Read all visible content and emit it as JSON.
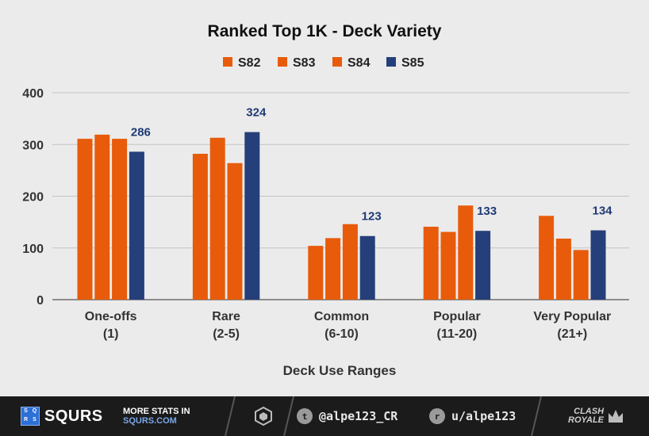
{
  "chart_data": {
    "type": "bar",
    "title": "Ranked Top 1K - Deck Variety",
    "xlabel": "Deck Use Ranges",
    "ylabel": "",
    "ylim": [
      0,
      400
    ],
    "yticks": [
      0,
      100,
      200,
      300,
      400
    ],
    "grid": true,
    "legend_position": "top-center",
    "categories": [
      [
        "One-offs",
        "(1)"
      ],
      [
        "Rare",
        "(2-5)"
      ],
      [
        "Common",
        "(6-10)"
      ],
      [
        "Popular",
        "(11-20)"
      ],
      [
        "Very Popular",
        "(21+)"
      ]
    ],
    "series": [
      {
        "name": "S82",
        "color": "#e85b0b",
        "values": [
          311,
          282,
          104,
          141,
          162
        ]
      },
      {
        "name": "S83",
        "color": "#e85b0b",
        "values": [
          319,
          313,
          119,
          131,
          118
        ]
      },
      {
        "name": "S84",
        "color": "#e85b0b",
        "values": [
          311,
          264,
          146,
          182,
          96
        ]
      },
      {
        "name": "S85",
        "color": "#243f7a",
        "values": [
          286,
          324,
          123,
          133,
          134
        ],
        "show_labels": true
      }
    ]
  },
  "footer": {
    "logo_letters": [
      "S",
      "Q",
      "R",
      "S"
    ],
    "brand": "SQURS",
    "more_line1": "MORE STATS IN",
    "more_line2": "SQURS.COM",
    "twitter_handle": "@alpe123_CR",
    "reddit_handle": "u/alpe123",
    "game_logo_line1": "CLASH",
    "game_logo_line2": "ROYALE"
  }
}
